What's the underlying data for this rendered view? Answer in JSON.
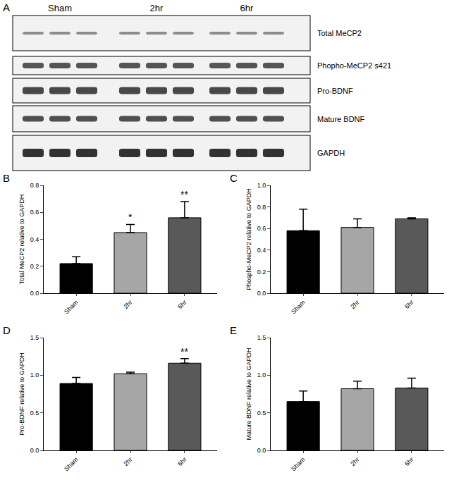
{
  "panel_a": {
    "label": "A",
    "groups": [
      "Sham",
      "2hr",
      "6hr"
    ],
    "rows": [
      "Total MeCP2",
      "Phopho-MeCP2 s421",
      "Pro-BDNF",
      "Mature BDNF",
      "GAPDH"
    ]
  },
  "chart_data": [
    {
      "panel_label": "B",
      "type": "bar",
      "categories": [
        "Sham",
        "2hr",
        "6hr"
      ],
      "values": [
        0.22,
        0.45,
        0.56
      ],
      "errors": [
        0.05,
        0.06,
        0.12
      ],
      "colors": [
        "#000000",
        "#a6a6a6",
        "#595959"
      ],
      "ylabel": "Total MeCP2 relative to GAPDH",
      "ylim": [
        0,
        0.8
      ],
      "yticks": [
        {
          "value": 0,
          "label": "0.0"
        },
        {
          "value": 0.2,
          "label": "0.2"
        },
        {
          "value": 0.4,
          "label": "0.4"
        },
        {
          "value": 0.6,
          "label": "0.6"
        },
        {
          "value": 0.8,
          "label": "0.8"
        }
      ],
      "annotations": [
        {
          "category": "2hr",
          "text": "*"
        },
        {
          "category": "6hr",
          "text": "**"
        }
      ]
    },
    {
      "panel_label": "C",
      "type": "bar",
      "categories": [
        "Sham",
        "2hr",
        "6hr"
      ],
      "values": [
        0.58,
        0.61,
        0.69
      ],
      "errors": [
        0.2,
        0.08,
        0.01
      ],
      "colors": [
        "#000000",
        "#a6a6a6",
        "#595959"
      ],
      "ylabel": "Phospho-MeCP2 relative to GAPDH",
      "ylim": [
        0,
        1.0
      ],
      "yticks": [
        {
          "value": 0,
          "label": "0.0"
        },
        {
          "value": 0.2,
          "label": "0.2"
        },
        {
          "value": 0.4,
          "label": "0.4"
        },
        {
          "value": 0.6,
          "label": "0.6"
        },
        {
          "value": 0.8,
          "label": "0.8"
        },
        {
          "value": 1.0,
          "label": "1.0"
        }
      ],
      "annotations": []
    },
    {
      "panel_label": "D",
      "type": "bar",
      "categories": [
        "Sham",
        "2hr",
        "6hr"
      ],
      "values": [
        0.89,
        1.02,
        1.16
      ],
      "errors": [
        0.08,
        0.02,
        0.06
      ],
      "colors": [
        "#000000",
        "#a6a6a6",
        "#595959"
      ],
      "ylabel": "Pro-BDNF relative to GAPDH",
      "ylim": [
        0,
        1.5
      ],
      "yticks": [
        {
          "value": 0,
          "label": "0.0"
        },
        {
          "value": 0.5,
          "label": "0.5"
        },
        {
          "value": 1.0,
          "label": "1.0"
        },
        {
          "value": 1.5,
          "label": "1.5"
        }
      ],
      "annotations": [
        {
          "category": "6hr",
          "text": "**"
        }
      ]
    },
    {
      "panel_label": "E",
      "type": "bar",
      "categories": [
        "Sham",
        "2hr",
        "6hr"
      ],
      "values": [
        0.65,
        0.82,
        0.83
      ],
      "errors": [
        0.14,
        0.1,
        0.13
      ],
      "colors": [
        "#000000",
        "#a6a6a6",
        "#595959"
      ],
      "ylabel": "Mature BDNF relative to GAPDH",
      "ylim": [
        0,
        1.5
      ],
      "yticks": [
        {
          "value": 0,
          "label": "0.0"
        },
        {
          "value": 0.5,
          "label": "0.5"
        },
        {
          "value": 1.0,
          "label": "1.0"
        },
        {
          "value": 1.5,
          "label": "1.5"
        }
      ],
      "annotations": []
    }
  ]
}
